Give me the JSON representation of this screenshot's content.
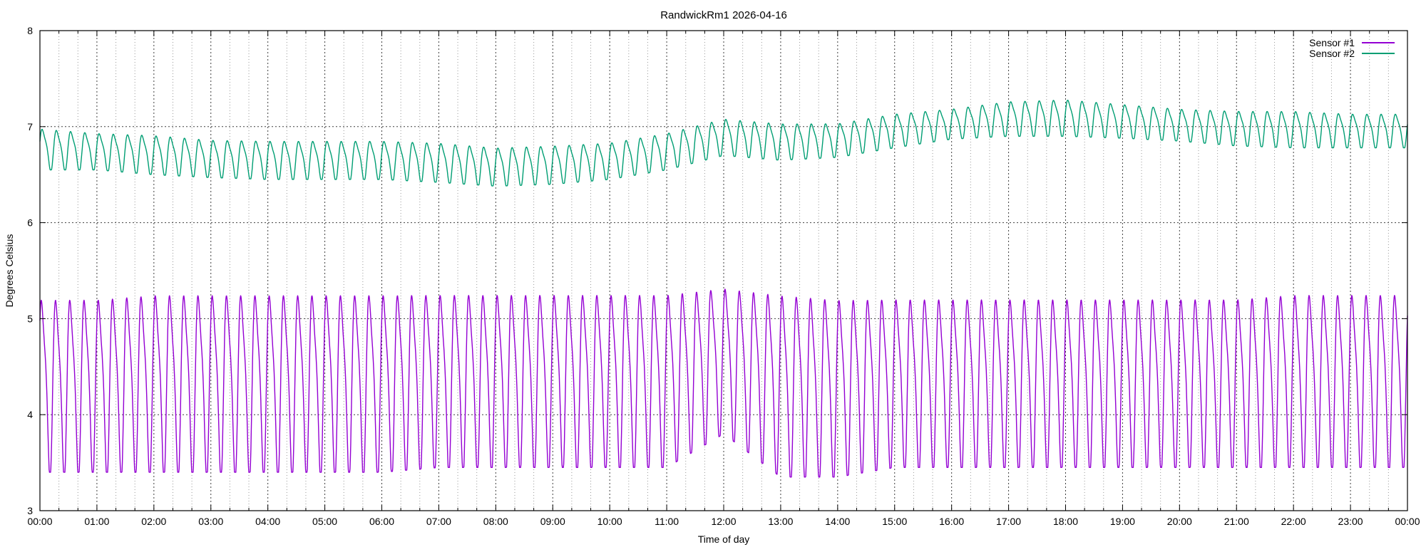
{
  "chart_data": {
    "type": "line",
    "title": "RandwickRm1 2026-04-16",
    "xlabel": "Time of day",
    "ylabel": "Degrees Celsius",
    "ylim": [
      3,
      8
    ],
    "yticks": [
      "3",
      "4",
      "5",
      "6",
      "7",
      "8"
    ],
    "xlim_hours": [
      0,
      24
    ],
    "xticks": [
      "00:00",
      "01:00",
      "02:00",
      "03:00",
      "04:00",
      "05:00",
      "06:00",
      "07:00",
      "08:00",
      "09:00",
      "10:00",
      "11:00",
      "12:00",
      "13:00",
      "14:00",
      "15:00",
      "16:00",
      "17:00",
      "18:00",
      "19:00",
      "20:00",
      "21:00",
      "22:00",
      "23:00",
      "00:00"
    ],
    "grid": true,
    "legend_position": "top-right",
    "cycles_per_hour": 4,
    "series": [
      {
        "name": "Sensor #1",
        "color": "#9400d3",
        "x": [
          "00:00",
          "01:00",
          "02:00",
          "03:00",
          "04:00",
          "05:00",
          "06:00",
          "07:00",
          "08:00",
          "09:00",
          "10:00",
          "11:00",
          "12:00",
          "13:00",
          "14:00",
          "15:00",
          "16:00",
          "17:00",
          "18:00",
          "19:00",
          "20:00",
          "21:00",
          "22:00",
          "23:00",
          "24:00"
        ],
        "max": [
          5.3,
          5.3,
          5.35,
          5.35,
          5.35,
          5.35,
          5.35,
          5.35,
          5.35,
          5.35,
          5.35,
          5.35,
          5.4,
          5.35,
          5.3,
          5.3,
          5.3,
          5.3,
          5.3,
          5.3,
          5.3,
          5.3,
          5.35,
          5.35,
          5.35
        ],
        "min": [
          3.4,
          3.4,
          3.4,
          3.4,
          3.4,
          3.4,
          3.4,
          3.45,
          3.45,
          3.45,
          3.45,
          3.45,
          3.8,
          3.35,
          3.35,
          3.45,
          3.45,
          3.45,
          3.45,
          3.45,
          3.45,
          3.45,
          3.45,
          3.45,
          3.45
        ]
      },
      {
        "name": "Sensor #2",
        "color": "#009e73",
        "x": [
          "00:00",
          "01:00",
          "02:00",
          "03:00",
          "04:00",
          "05:00",
          "06:00",
          "07:00",
          "08:00",
          "09:00",
          "10:00",
          "11:00",
          "12:00",
          "13:00",
          "14:00",
          "15:00",
          "16:00",
          "17:00",
          "18:00",
          "19:00",
          "20:00",
          "21:00",
          "22:00",
          "23:00",
          "24:00"
        ],
        "max": [
          7.0,
          6.95,
          6.93,
          6.88,
          6.87,
          6.87,
          6.87,
          6.85,
          6.8,
          6.82,
          6.85,
          6.95,
          7.1,
          7.05,
          7.05,
          7.15,
          7.2,
          7.28,
          7.3,
          7.25,
          7.2,
          7.18,
          7.18,
          7.15,
          7.15
        ],
        "min": [
          6.55,
          6.55,
          6.5,
          6.47,
          6.45,
          6.45,
          6.45,
          6.42,
          6.38,
          6.4,
          6.45,
          6.55,
          6.7,
          6.65,
          6.68,
          6.78,
          6.87,
          6.9,
          6.9,
          6.88,
          6.85,
          6.8,
          6.78,
          6.78,
          6.78
        ]
      }
    ]
  }
}
